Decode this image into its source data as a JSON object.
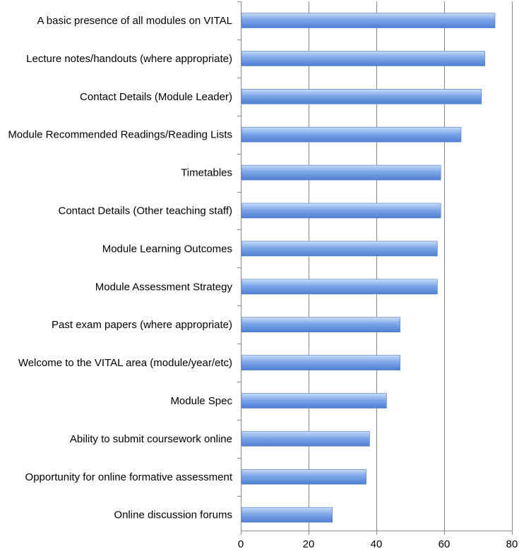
{
  "chart_data": {
    "type": "bar",
    "orientation": "horizontal",
    "categories": [
      "A basic presence of all modules on VITAL",
      "Lecture notes/handouts (where appropriate)",
      "Contact Details (Module Leader)",
      "Module Recommended Readings/Reading Lists",
      "Timetables",
      "Contact Details (Other teaching staff)",
      "Module Learning Outcomes",
      "Module Assessment Strategy",
      "Past exam papers (where appropriate)",
      "Welcome to the VITAL area (module/year/etc)",
      "Module Spec",
      "Ability to submit coursework online",
      "Opportunity for online formative assessment",
      "Online discussion forums"
    ],
    "values": [
      75,
      72,
      71,
      65,
      59,
      59,
      58,
      58,
      47,
      47,
      43,
      38,
      37,
      27
    ],
    "xlim": [
      0,
      80
    ],
    "x_ticks": [
      "0",
      "20",
      "40",
      "60",
      "80"
    ],
    "title": "",
    "xlabel": "",
    "ylabel": "",
    "grid": "vertical",
    "legend": "none",
    "colors": {
      "bar_top": "#c9dcf7",
      "bar_mid": "#7ea6e8",
      "bar_bottom": "#4f7fd3",
      "bar_edge": "#4a78c8",
      "grid": "#8c8c8c"
    }
  }
}
